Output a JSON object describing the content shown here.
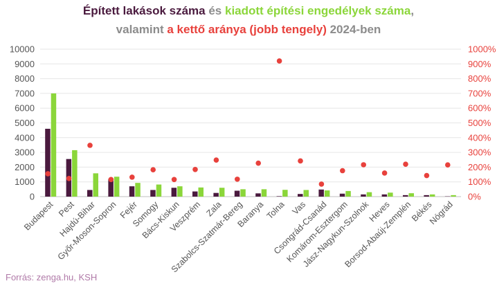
{
  "title": {
    "line1": [
      {
        "text": "Épített lakások száma",
        "color": "#4a1a3e"
      },
      {
        "text": " és ",
        "color": "#8c8c8c"
      },
      {
        "text": "kiadott építési engedélyek száma",
        "color": "#8bd63a"
      },
      {
        "text": ",",
        "color": "#8c8c8c"
      }
    ],
    "line2": [
      {
        "text": "valamint ",
        "color": "#8c8c8c"
      },
      {
        "text": "a kettő aránya (jobb tengely)",
        "color": "#e8413c"
      },
      {
        "text": " 2024-ben",
        "color": "#8c8c8c"
      }
    ]
  },
  "source": "Forrás: zenga.hu, KSH",
  "colors": {
    "built": "#4a1a3e",
    "permits": "#8bd63a",
    "ratio": "#e8413c",
    "grid": "#e6e6e6",
    "axis": "#bfbfbf"
  },
  "chart_data": {
    "type": "bar",
    "categories": [
      "Budapest",
      "Pest",
      "Hajdú-Bihar",
      "Győr-Moson-Sopron",
      "Fejér",
      "Somogy",
      "Bács-Kiskun",
      "Veszprém",
      "Zala",
      "Szabolcs-Szatmár-Bereg",
      "Baranya",
      "Tolna",
      "Vas",
      "Csongrád-Csanád",
      "Komárom-Esztergom",
      "Jász-Nagykun-Szolnok",
      "Heves",
      "Borsod-Abaúj-Zemplén",
      "Békés",
      "Nógrád"
    ],
    "series": [
      {
        "key": "built",
        "axis": "left",
        "kind": "bar",
        "values": [
          4600,
          2550,
          450,
          1200,
          700,
          450,
          600,
          350,
          250,
          400,
          220,
          30,
          180,
          480,
          200,
          150,
          150,
          100,
          100,
          20
        ]
      },
      {
        "key": "permits",
        "axis": "left",
        "kind": "bar",
        "values": [
          7000,
          3150,
          1580,
          1350,
          930,
          820,
          700,
          620,
          600,
          500,
          500,
          460,
          450,
          420,
          380,
          300,
          270,
          230,
          150,
          100
        ]
      },
      {
        "key": "ratio",
        "axis": "right",
        "kind": "scatter",
        "values": [
          1.55,
          1.23,
          3.48,
          1.16,
          1.32,
          1.82,
          1.16,
          1.84,
          2.48,
          1.18,
          2.27,
          9.2,
          2.42,
          0.85,
          1.76,
          2.16,
          1.6,
          2.2,
          1.43,
          2.15
        ]
      }
    ],
    "y_left": {
      "min": 0,
      "max": 10000,
      "ticks": [
        "0",
        "1000",
        "2000",
        "3000",
        "4000",
        "5000",
        "6000",
        "7000",
        "8000",
        "9000",
        "10000"
      ]
    },
    "y_right": {
      "min": 0,
      "max": 10,
      "ticks": [
        "0%",
        "100%",
        "200%",
        "300%",
        "400%",
        "500%",
        "600%",
        "700%",
        "800%",
        "900%",
        "1000%"
      ]
    },
    "grid": true,
    "legend": "none"
  }
}
